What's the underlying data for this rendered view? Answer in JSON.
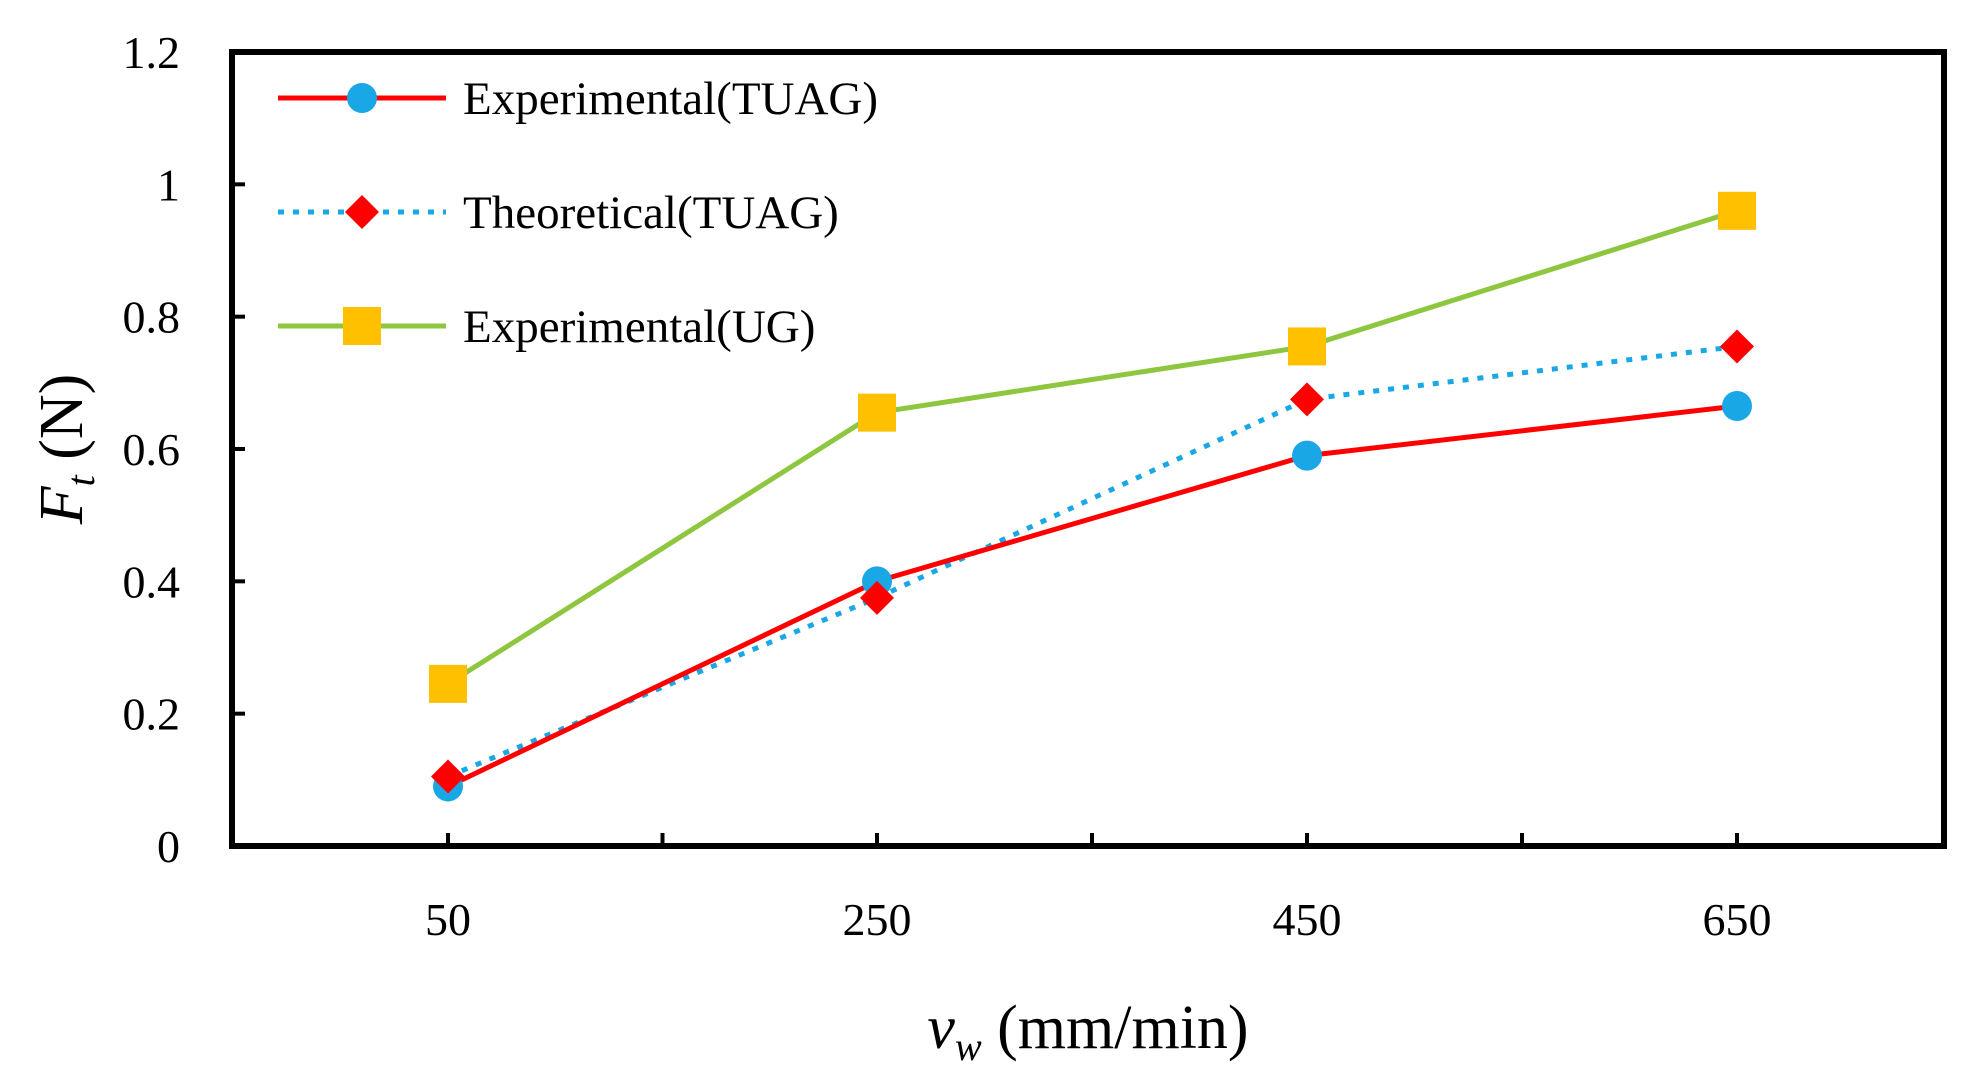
{
  "chart_data": {
    "type": "line",
    "title": "",
    "xlabel": {
      "main": "v",
      "sub": "w",
      "unit": " (mm/min)"
    },
    "ylabel": {
      "main": "F",
      "sub": "t",
      "unit": " (N)"
    },
    "categories": [
      "50",
      "250",
      "450",
      "650"
    ],
    "ylim": [
      0,
      1.2
    ],
    "yticks": [
      "0",
      "0.2",
      "0.4",
      "0.6",
      "0.8",
      "1",
      "1.2"
    ],
    "grid": false,
    "legend_position": "top-left",
    "series": [
      {
        "name": "Experimental(TUAG)",
        "values": [
          0.09,
          0.4,
          0.59,
          0.665
        ],
        "line_color": "#ff0000",
        "marker_color": "#1aa7e6",
        "line_style": "solid",
        "marker": "circle"
      },
      {
        "name": "Theoretical(TUAG)",
        "values": [
          0.105,
          0.375,
          0.675,
          0.755
        ],
        "line_color": "#1aa7e6",
        "marker_color": "#ff0000",
        "line_style": "dotted",
        "marker": "diamond"
      },
      {
        "name": "Experimental(UG)",
        "values": [
          0.245,
          0.655,
          0.755,
          0.96
        ],
        "line_color": "#8ec63f",
        "marker_color": "#ffc000",
        "line_style": "solid",
        "marker": "square"
      }
    ]
  }
}
